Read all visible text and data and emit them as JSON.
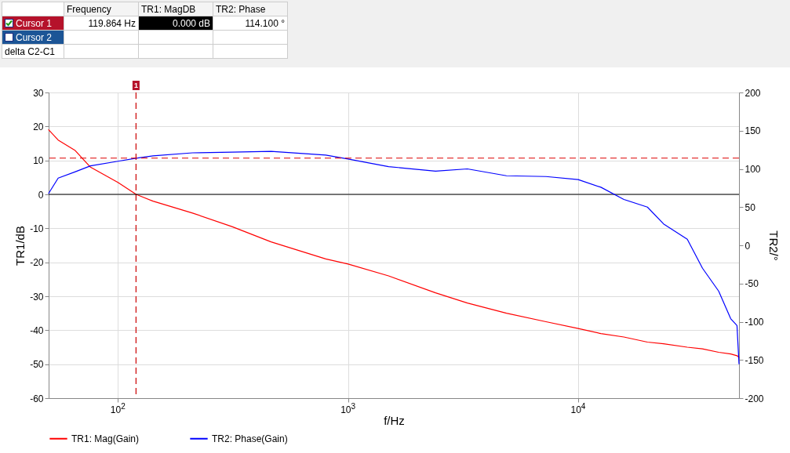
{
  "chart_data": {
    "type": "line",
    "xlabel": "f/Hz",
    "ylabel": "TR1/dB",
    "y2label": "TR2/°",
    "x": [
      50,
      55,
      65,
      76,
      100,
      120,
      142,
      211,
      313,
      463,
      800,
      1000,
      1500,
      2400,
      3300,
      4880,
      7250,
      10000,
      12550,
      15800,
      20000,
      23500,
      29800,
      34700,
      40800,
      46000,
      49000,
      50000
    ],
    "series": [
      {
        "name": "TR1: Mag(Gain)",
        "color": "#ff0000",
        "values": [
          19,
          16,
          13,
          8,
          3.5,
          0,
          -2,
          -5.5,
          -9.5,
          -14,
          -19,
          -20.5,
          -24,
          -29,
          -32,
          -35,
          -37.5,
          -39.5,
          -41,
          -42,
          -43.5,
          -44,
          -45,
          -45.5,
          -46.5,
          -47,
          -47.5,
          -48
        ]
      },
      {
        "name": "TR2: Phase(Gain)",
        "color": "#0000ff",
        "axis": "y2",
        "values": [
          68,
          88,
          96,
          104,
          110,
          114,
          117,
          121,
          122,
          123,
          118,
          113,
          103,
          97,
          100,
          91,
          90,
          86,
          76,
          60,
          50,
          28,
          8,
          -30,
          -60,
          -96,
          -105,
          -155
        ]
      }
    ],
    "xlim": [
      50,
      50000
    ],
    "xticks": [
      {
        "value": 100,
        "label": "10$^{2}$"
      },
      {
        "value": 1000,
        "label": "10$^{3}$"
      },
      {
        "value": 10000,
        "label": "10$^{4}$"
      }
    ],
    "log": "x",
    "ylim": [
      -60,
      30
    ],
    "yticks": [
      -60,
      -50,
      -40,
      -30,
      -20,
      -10,
      0,
      10,
      20,
      30
    ],
    "y2lim": [
      -200,
      200
    ],
    "y2ticks": [
      -200,
      -150,
      -100,
      -50,
      0,
      50,
      100,
      150,
      200
    ],
    "ref_lines": [
      {
        "axis": "x",
        "value": 119.864,
        "color": "#cc0000",
        "line_style": "dashed"
      },
      {
        "axis": "y",
        "value": 0,
        "color": "#000000",
        "line_style": "solid"
      },
      {
        "axis": "y2",
        "value": 114.1,
        "color": "#dd0000",
        "line_style": "dashed"
      }
    ],
    "annotations": [
      "1",
      "Frequency",
      "TR1: MagDB",
      "TR2: Phase",
      "Cursor 1",
      "119.864 Hz",
      "0.000 dB",
      "114.100 °",
      "Cursor 2",
      "delta C2-C1"
    ],
    "grid": true,
    "legend": "bottom",
    "line_style": "solid",
    "marker": "none"
  }
}
